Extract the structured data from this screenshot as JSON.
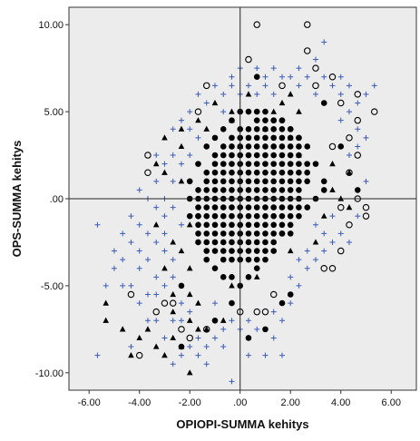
{
  "colors": {
    "plot_background": "#ececec",
    "page_background": "#ffffff",
    "frame": "#333333",
    "filled_marker": "#000000",
    "hollow_marker": "#000000",
    "triangle_marker": "#000000",
    "plus_marker": "#3a5bb8",
    "reference_line": "#222222"
  },
  "chart_data": {
    "type": "scatter",
    "xlabel": "OPIOPI-SUMMA kehitys",
    "ylabel": "OPS-SUMMA kehitys",
    "xlim": [
      -6.8,
      7.0
    ],
    "ylim": [
      -11.0,
      11.0
    ],
    "x_ticks": [
      -6,
      -4,
      -2,
      0,
      2,
      4,
      6
    ],
    "x_tick_labels": [
      "-6.00",
      "-4.00",
      "-2.00",
      ".00",
      "2.00",
      "4.00",
      "6.00"
    ],
    "y_ticks": [
      -10,
      -5,
      0,
      5,
      10
    ],
    "y_tick_labels": [
      "-10.00",
      "-5.00",
      ".00",
      "5.00",
      "10.00"
    ],
    "reference_lines": {
      "x": 0,
      "y": 0
    },
    "grid": false,
    "legend": "none",
    "grid_step": {
      "x": 0.333,
      "y": 0.5
    },
    "series": [
      {
        "marker": "filled-circle",
        "points": [
          [
            -1.667,
            -2.5
          ],
          [
            -1.333,
            -3.5
          ],
          [
            -1.0,
            -4.0
          ],
          [
            -0.667,
            -4.5
          ],
          [
            -0.333,
            -4.5
          ],
          [
            0.0,
            -5.0
          ],
          [
            0.333,
            -4.5
          ],
          [
            0.667,
            -4.0
          ],
          [
            1.0,
            -3.5
          ],
          [
            1.333,
            -3.0
          ],
          [
            1.667,
            -2.0
          ],
          [
            2.0,
            -2.0
          ],
          [
            2.333,
            -1.0
          ],
          [
            2.667,
            -0.5
          ],
          [
            3.0,
            0.0
          ],
          [
            3.333,
            0.5
          ],
          [
            3.333,
            1.0
          ],
          [
            3.0,
            2.0
          ],
          [
            2.667,
            3.0
          ],
          [
            2.333,
            3.5
          ],
          [
            2.0,
            4.0
          ],
          [
            1.667,
            4.5
          ],
          [
            1.333,
            4.5
          ],
          [
            1.0,
            5.0
          ],
          [
            0.667,
            5.0
          ],
          [
            0.333,
            5.0
          ],
          [
            0.0,
            5.0
          ],
          [
            -0.333,
            4.5
          ],
          [
            -0.667,
            4.0
          ],
          [
            -1.0,
            3.5
          ],
          [
            -1.333,
            3.0
          ],
          [
            -1.667,
            2.0
          ],
          [
            -2.0,
            1.0
          ],
          [
            -2.0,
            0.0
          ],
          [
            -2.0,
            -1.0
          ],
          [
            -1.667,
            -1.0
          ],
          [
            0.667,
            7.0
          ],
          [
            -2.333,
            -8.5
          ],
          [
            4.667,
            0.5
          ],
          [
            0.333,
            -8.0
          ],
          [
            1.0,
            -7.5
          ],
          [
            -1.0,
            -7.0
          ],
          [
            2.0,
            -5.5
          ],
          [
            -0.333,
            -6.0
          ],
          [
            1.667,
            -6.0
          ],
          [
            -2.333,
            -5.0
          ],
          [
            3.333,
            5.5
          ],
          [
            4.0,
            3.0
          ]
        ]
      },
      {
        "marker": "hollow-circle",
        "points": [
          [
            0.667,
            10.0
          ],
          [
            2.667,
            10.0
          ],
          [
            2.667,
            8.5
          ],
          [
            0.333,
            8.0
          ],
          [
            3.0,
            7.5
          ],
          [
            3.667,
            7.0
          ],
          [
            3.0,
            6.5
          ],
          [
            1.667,
            6.5
          ],
          [
            -1.333,
            6.5
          ],
          [
            4.667,
            6.0
          ],
          [
            5.333,
            5.0
          ],
          [
            4.0,
            5.5
          ],
          [
            -1.667,
            5.0
          ],
          [
            4.667,
            4.5
          ],
          [
            4.333,
            3.5
          ],
          [
            4.667,
            2.5
          ],
          [
            4.333,
            1.5
          ],
          [
            4.667,
            0.0
          ],
          [
            5.0,
            -0.5
          ],
          [
            5.0,
            -1.0
          ],
          [
            -3.667,
            2.5
          ],
          [
            -3.667,
            1.5
          ],
          [
            -4.333,
            -5.5
          ],
          [
            -4.0,
            -9.0
          ],
          [
            -3.333,
            -6.5
          ],
          [
            -3.0,
            -6.0
          ],
          [
            4.0,
            -3.0
          ],
          [
            3.333,
            -4.0
          ],
          [
            3.667,
            -4.0
          ],
          [
            1.333,
            -5.5
          ],
          [
            0.667,
            -6.5
          ],
          [
            0.0,
            -6.5
          ],
          [
            1.0,
            -6.5
          ],
          [
            -2.667,
            -6.0
          ],
          [
            -2.0,
            -8.0
          ],
          [
            -2.333,
            -7.5
          ],
          [
            -1.333,
            -7.5
          ],
          [
            4.0,
            -0.5
          ],
          [
            4.333,
            -1.5
          ],
          [
            3.667,
            3.0
          ]
        ]
      },
      {
        "marker": "triangle",
        "points": [
          [
            -5.333,
            -6.0
          ],
          [
            -5.333,
            -7.0
          ],
          [
            -4.667,
            -7.5
          ],
          [
            -4.0,
            -8.0
          ],
          [
            -3.667,
            -7.5
          ],
          [
            -3.333,
            -8.5
          ],
          [
            -4.333,
            -9.0
          ],
          [
            -3.0,
            -9.0
          ],
          [
            -2.0,
            -10.0
          ],
          [
            -2.333,
            -8.5
          ],
          [
            -2.667,
            -6.5
          ],
          [
            -2.0,
            -7.0
          ],
          [
            -1.667,
            -7.5
          ],
          [
            -1.333,
            -7.5
          ],
          [
            -1.667,
            -6.0
          ],
          [
            -0.667,
            -7.0
          ],
          [
            -2.667,
            -5.5
          ],
          [
            -3.0,
            -4.0
          ],
          [
            -2.667,
            -2.5
          ],
          [
            -3.333,
            -1.5
          ],
          [
            -3.0,
            1.5
          ],
          [
            -3.333,
            2.0
          ],
          [
            -3.0,
            3.5
          ],
          [
            -2.333,
            3.0
          ],
          [
            -2.333,
            4.0
          ],
          [
            -1.667,
            4.5
          ],
          [
            -1.333,
            4.0
          ],
          [
            -1.0,
            5.5
          ],
          [
            -0.333,
            5.0
          ],
          [
            -0.333,
            4.5
          ],
          [
            0.333,
            6.0
          ],
          [
            2.0,
            6.0
          ],
          [
            1.667,
            5.5
          ],
          [
            1.333,
            5.0
          ],
          [
            2.333,
            5.0
          ],
          [
            2.0,
            3.5
          ],
          [
            3.667,
            2.0
          ],
          [
            4.333,
            1.5
          ],
          [
            3.667,
            0.5
          ],
          [
            4.0,
            0.0
          ],
          [
            4.333,
            -0.5
          ],
          [
            3.333,
            -1.0
          ],
          [
            3.0,
            -2.5
          ],
          [
            2.0,
            -3.0
          ],
          [
            0.667,
            -4.5
          ],
          [
            -0.333,
            -5.0
          ],
          [
            -2.0,
            -4.0
          ],
          [
            -2.333,
            -3.0
          ],
          [
            -2.0,
            -1.5
          ],
          [
            -2.333,
            1.0
          ],
          [
            0.0,
            3.0
          ],
          [
            1.0,
            4.0
          ],
          [
            -2.667,
            -8.0
          ],
          [
            2.333,
            2.5
          ],
          [
            -2.0,
            -5.5
          ]
        ]
      },
      {
        "marker": "plus",
        "points": [
          [
            -5.667,
            -1.5
          ],
          [
            -5.667,
            -9.0
          ],
          [
            -5.0,
            -3.0
          ],
          [
            -5.0,
            -4.0
          ],
          [
            -4.667,
            -3.5
          ],
          [
            -4.667,
            -2.0
          ],
          [
            -4.333,
            -1.0
          ],
          [
            -4.333,
            -2.5
          ],
          [
            -4.333,
            -8.5
          ],
          [
            -4.0,
            0.5
          ],
          [
            -4.0,
            -1.5
          ],
          [
            -4.0,
            -3.0
          ],
          [
            -4.0,
            -4.0
          ],
          [
            -4.0,
            -6.0
          ],
          [
            -3.667,
            0.0
          ],
          [
            -3.667,
            -2.0
          ],
          [
            -3.667,
            -3.5
          ],
          [
            -3.667,
            -5.5
          ],
          [
            -3.667,
            -7.0
          ],
          [
            -3.333,
            2.5
          ],
          [
            -3.333,
            1.0
          ],
          [
            -3.333,
            -0.5
          ],
          [
            -3.333,
            -2.5
          ],
          [
            -3.333,
            -4.5
          ],
          [
            -3.333,
            -5.5
          ],
          [
            -3.333,
            -7.0
          ],
          [
            -3.0,
            2.0
          ],
          [
            -3.0,
            0.0
          ],
          [
            -3.0,
            -1.0
          ],
          [
            -3.0,
            -2.0
          ],
          [
            -3.0,
            -3.0
          ],
          [
            -3.0,
            -5.0
          ],
          [
            -3.0,
            -8.0
          ],
          [
            -2.667,
            4.0
          ],
          [
            -2.667,
            2.5
          ],
          [
            -2.667,
            1.0
          ],
          [
            -2.667,
            -0.5
          ],
          [
            -2.667,
            -3.5
          ],
          [
            -2.667,
            -4.5
          ],
          [
            -2.667,
            -7.0
          ],
          [
            -2.667,
            -9.5
          ],
          [
            -2.333,
            4.5
          ],
          [
            -2.333,
            2.0
          ],
          [
            -2.333,
            -1.5
          ],
          [
            -2.333,
            -6.0
          ],
          [
            -2.333,
            -7.0
          ],
          [
            -2.333,
            -9.0
          ],
          [
            -2.0,
            5.0
          ],
          [
            -2.0,
            4.0
          ],
          [
            -2.0,
            2.5
          ],
          [
            -2.0,
            -6.5
          ],
          [
            -2.0,
            -8.5
          ],
          [
            -1.667,
            6.0
          ],
          [
            -1.667,
            3.5
          ],
          [
            -1.667,
            -8.0
          ],
          [
            -1.667,
            -9.0
          ],
          [
            -1.333,
            5.5
          ],
          [
            -1.333,
            -8.5
          ],
          [
            -1.333,
            -9.5
          ],
          [
            -1.0,
            6.5
          ],
          [
            -1.0,
            -6.0
          ],
          [
            -1.0,
            -8.0
          ],
          [
            -0.667,
            6.0
          ],
          [
            -0.667,
            5.0
          ],
          [
            -0.667,
            -7.5
          ],
          [
            -0.667,
            -8.5
          ],
          [
            -0.333,
            7.0
          ],
          [
            -0.333,
            6.5
          ],
          [
            -0.333,
            -7.0
          ],
          [
            -0.333,
            -10.5
          ],
          [
            0.0,
            7.5
          ],
          [
            0.0,
            6.0
          ],
          [
            0.0,
            -7.5
          ],
          [
            0.333,
            6.5
          ],
          [
            0.333,
            -7.0
          ],
          [
            0.333,
            -9.0
          ],
          [
            0.667,
            7.5
          ],
          [
            0.667,
            6.0
          ],
          [
            0.667,
            -7.5
          ],
          [
            1.0,
            7.0
          ],
          [
            1.0,
            6.5
          ],
          [
            1.0,
            -9.0
          ],
          [
            1.333,
            7.5
          ],
          [
            1.333,
            6.0
          ],
          [
            1.333,
            -6.5
          ],
          [
            1.333,
            -8.0
          ],
          [
            1.667,
            7.0
          ],
          [
            1.667,
            -7.0
          ],
          [
            1.667,
            -9.0
          ],
          [
            2.0,
            7.0
          ],
          [
            2.0,
            -6.0
          ],
          [
            2.0,
            -4.5
          ],
          [
            2.333,
            7.5
          ],
          [
            2.333,
            6.5
          ],
          [
            2.333,
            -5.0
          ],
          [
            2.333,
            -3.5
          ],
          [
            2.667,
            7.0
          ],
          [
            2.667,
            -4.0
          ],
          [
            2.667,
            -3.0
          ],
          [
            3.0,
            8.0
          ],
          [
            3.0,
            6.0
          ],
          [
            3.0,
            -3.5
          ],
          [
            3.0,
            -1.5
          ],
          [
            3.333,
            9.0
          ],
          [
            3.333,
            7.0
          ],
          [
            3.333,
            -3.0
          ],
          [
            3.333,
            -2.0
          ],
          [
            3.667,
            6.5
          ],
          [
            3.667,
            -2.5
          ],
          [
            3.667,
            -1.0
          ],
          [
            4.0,
            7.0
          ],
          [
            4.0,
            6.0
          ],
          [
            4.0,
            4.5
          ],
          [
            4.0,
            -2.0
          ],
          [
            4.333,
            6.5
          ],
          [
            4.333,
            5.0
          ],
          [
            4.333,
            2.5
          ],
          [
            4.333,
            -2.5
          ],
          [
            4.667,
            5.5
          ],
          [
            4.667,
            4.0
          ],
          [
            4.667,
            3.0
          ],
          [
            4.667,
            -1.0
          ],
          [
            5.0,
            6.0
          ],
          [
            5.0,
            3.5
          ],
          [
            5.0,
            1.0
          ],
          [
            5.333,
            6.5
          ],
          [
            -4.333,
            -5.0
          ],
          [
            -4.667,
            -5.0
          ],
          [
            -5.333,
            -5.0
          ]
        ]
      }
    ]
  }
}
